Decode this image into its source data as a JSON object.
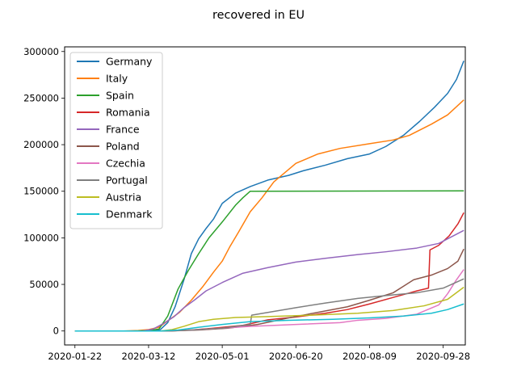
{
  "chart_data": {
    "type": "line",
    "title": "recovered in EU",
    "xlabel": "",
    "ylabel": "",
    "x_type": "date",
    "xlim": [
      "2020-01-15",
      "2020-10-13"
    ],
    "ylim": [
      -15000,
      305000
    ],
    "x_ticks": [
      "2020-01-22",
      "2020-03-12",
      "2020-05-01",
      "2020-06-20",
      "2020-08-09",
      "2020-09-28"
    ],
    "y_ticks": [
      0,
      50000,
      100000,
      150000,
      200000,
      250000,
      300000
    ],
    "y_tick_labels": [
      "0",
      "50000",
      "100000",
      "150000",
      "200000",
      "250000",
      "300000"
    ],
    "grid": false,
    "legend_position": "top-left",
    "series": [
      {
        "name": "Germany",
        "color": "#1f77b4",
        "points": [
          [
            "2020-01-22",
            0
          ],
          [
            "2020-02-28",
            0
          ],
          [
            "2020-03-15",
            300
          ],
          [
            "2020-03-20",
            1500
          ],
          [
            "2020-03-25",
            9000
          ],
          [
            "2020-03-30",
            26000
          ],
          [
            "2020-04-05",
            55000
          ],
          [
            "2020-04-10",
            83000
          ],
          [
            "2020-04-15",
            99000
          ],
          [
            "2020-04-20",
            110000
          ],
          [
            "2020-04-25",
            120000
          ],
          [
            "2020-05-01",
            137000
          ],
          [
            "2020-05-10",
            148000
          ],
          [
            "2020-05-20",
            155000
          ],
          [
            "2020-06-01",
            162000
          ],
          [
            "2020-06-15",
            167000
          ],
          [
            "2020-06-25",
            172000
          ],
          [
            "2020-07-10",
            178000
          ],
          [
            "2020-07-25",
            185000
          ],
          [
            "2020-08-09",
            190000
          ],
          [
            "2020-08-20",
            198000
          ],
          [
            "2020-09-01",
            210000
          ],
          [
            "2020-09-12",
            225000
          ],
          [
            "2020-09-22",
            240000
          ],
          [
            "2020-10-01",
            255000
          ],
          [
            "2020-10-07",
            270000
          ],
          [
            "2020-10-12",
            290000
          ]
        ]
      },
      {
        "name": "Italy",
        "color": "#ff7f0e",
        "points": [
          [
            "2020-01-22",
            0
          ],
          [
            "2020-02-24",
            0
          ],
          [
            "2020-03-05",
            500
          ],
          [
            "2020-03-12",
            1500
          ],
          [
            "2020-03-19",
            4000
          ],
          [
            "2020-03-26",
            12000
          ],
          [
            "2020-04-02",
            20000
          ],
          [
            "2020-04-10",
            33000
          ],
          [
            "2020-04-18",
            48000
          ],
          [
            "2020-04-25",
            63000
          ],
          [
            "2020-05-01",
            75000
          ],
          [
            "2020-05-06",
            90000
          ],
          [
            "2020-05-12",
            106000
          ],
          [
            "2020-05-20",
            128000
          ],
          [
            "2020-05-28",
            143000
          ],
          [
            "2020-06-05",
            160000
          ],
          [
            "2020-06-20",
            180000
          ],
          [
            "2020-07-05",
            190000
          ],
          [
            "2020-07-20",
            196000
          ],
          [
            "2020-08-09",
            201000
          ],
          [
            "2020-08-25",
            205000
          ],
          [
            "2020-09-05",
            210000
          ],
          [
            "2020-09-20",
            222000
          ],
          [
            "2020-10-01",
            232000
          ],
          [
            "2020-10-12",
            248000
          ]
        ]
      },
      {
        "name": "Spain",
        "color": "#2ca02c",
        "points": [
          [
            "2020-01-22",
            0
          ],
          [
            "2020-03-01",
            0
          ],
          [
            "2020-03-12",
            400
          ],
          [
            "2020-03-19",
            2000
          ],
          [
            "2020-03-25",
            16000
          ],
          [
            "2020-04-01",
            45000
          ],
          [
            "2020-04-08",
            65000
          ],
          [
            "2020-04-15",
            83000
          ],
          [
            "2020-04-22",
            100000
          ],
          [
            "2020-05-01",
            117000
          ],
          [
            "2020-05-10",
            135000
          ],
          [
            "2020-05-15",
            143000
          ],
          [
            "2020-05-20",
            150000
          ],
          [
            "2020-10-12",
            150400
          ]
        ]
      },
      {
        "name": "Romania",
        "color": "#d62728",
        "points": [
          [
            "2020-01-22",
            0
          ],
          [
            "2020-03-25",
            0
          ],
          [
            "2020-04-10",
            1000
          ],
          [
            "2020-04-25",
            3000
          ],
          [
            "2020-05-15",
            6000
          ],
          [
            "2020-06-01",
            12000
          ],
          [
            "2020-06-20",
            15000
          ],
          [
            "2020-07-10",
            19000
          ],
          [
            "2020-07-25",
            23000
          ],
          [
            "2020-08-09",
            29000
          ],
          [
            "2020-08-25",
            36000
          ],
          [
            "2020-09-10",
            43000
          ],
          [
            "2020-09-18",
            46000
          ],
          [
            "2020-09-19",
            87000
          ],
          [
            "2020-09-25",
            92000
          ],
          [
            "2020-10-02",
            102000
          ],
          [
            "2020-10-08",
            115000
          ],
          [
            "2020-10-12",
            127000
          ]
        ]
      },
      {
        "name": "France",
        "color": "#9467bd",
        "points": [
          [
            "2020-01-22",
            0
          ],
          [
            "2020-03-08",
            0
          ],
          [
            "2020-03-15",
            2000
          ],
          [
            "2020-03-22",
            8000
          ],
          [
            "2020-03-29",
            15000
          ],
          [
            "2020-04-05",
            25000
          ],
          [
            "2020-04-12",
            33000
          ],
          [
            "2020-04-20",
            43000
          ],
          [
            "2020-05-01",
            52000
          ],
          [
            "2020-05-15",
            62000
          ],
          [
            "2020-06-01",
            68000
          ],
          [
            "2020-06-20",
            74000
          ],
          [
            "2020-07-10",
            78000
          ],
          [
            "2020-08-01",
            82000
          ],
          [
            "2020-08-20",
            85000
          ],
          [
            "2020-09-10",
            89000
          ],
          [
            "2020-09-25",
            94000
          ],
          [
            "2020-10-12",
            108000
          ]
        ]
      },
      {
        "name": "Poland",
        "color": "#8c564b",
        "points": [
          [
            "2020-01-22",
            0
          ],
          [
            "2020-03-25",
            0
          ],
          [
            "2020-04-15",
            1000
          ],
          [
            "2020-05-05",
            3000
          ],
          [
            "2020-05-25",
            7000
          ],
          [
            "2020-06-15",
            14000
          ],
          [
            "2020-07-05",
            20000
          ],
          [
            "2020-07-25",
            26000
          ],
          [
            "2020-08-09",
            33000
          ],
          [
            "2020-08-25",
            41000
          ],
          [
            "2020-09-01",
            48000
          ],
          [
            "2020-09-08",
            55000
          ],
          [
            "2020-09-20",
            60000
          ],
          [
            "2020-10-01",
            67000
          ],
          [
            "2020-10-08",
            75000
          ],
          [
            "2020-10-12",
            88000
          ]
        ]
      },
      {
        "name": "Czechia",
        "color": "#e377c2",
        "points": [
          [
            "2020-01-22",
            0
          ],
          [
            "2020-03-20",
            0
          ],
          [
            "2020-04-10",
            1000
          ],
          [
            "2020-05-01",
            3000
          ],
          [
            "2020-05-20",
            5000
          ],
          [
            "2020-06-20",
            7000
          ],
          [
            "2020-07-20",
            9000
          ],
          [
            "2020-08-01",
            11500
          ],
          [
            "2020-08-20",
            13500
          ],
          [
            "2020-09-10",
            18000
          ],
          [
            "2020-09-25",
            28000
          ],
          [
            "2020-10-01",
            40000
          ],
          [
            "2020-10-07",
            55000
          ],
          [
            "2020-10-12",
            66000
          ]
        ]
      },
      {
        "name": "Portugal",
        "color": "#7f7f7f",
        "points": [
          [
            "2020-01-22",
            0
          ],
          [
            "2020-03-25",
            0
          ],
          [
            "2020-04-10",
            1000
          ],
          [
            "2020-05-01",
            3000
          ],
          [
            "2020-05-20",
            7000
          ],
          [
            "2020-05-21",
            17000
          ],
          [
            "2020-06-05",
            21000
          ],
          [
            "2020-06-20",
            25000
          ],
          [
            "2020-07-10",
            30000
          ],
          [
            "2020-08-01",
            35000
          ],
          [
            "2020-08-20",
            38000
          ],
          [
            "2020-09-10",
            41000
          ],
          [
            "2020-09-28",
            46000
          ],
          [
            "2020-10-12",
            56000
          ]
        ]
      },
      {
        "name": "Austria",
        "color": "#bcbd22",
        "points": [
          [
            "2020-01-22",
            0
          ],
          [
            "2020-03-20",
            0
          ],
          [
            "2020-03-28",
            1500
          ],
          [
            "2020-04-05",
            5000
          ],
          [
            "2020-04-15",
            10000
          ],
          [
            "2020-04-25",
            12500
          ],
          [
            "2020-05-10",
            14500
          ],
          [
            "2020-06-01",
            15500
          ],
          [
            "2020-07-01",
            17000
          ],
          [
            "2020-08-01",
            19000
          ],
          [
            "2020-08-25",
            22000
          ],
          [
            "2020-09-15",
            27000
          ],
          [
            "2020-10-01",
            34000
          ],
          [
            "2020-10-12",
            47000
          ]
        ]
      },
      {
        "name": "Denmark",
        "color": "#17becf",
        "points": [
          [
            "2020-01-22",
            0
          ],
          [
            "2020-03-20",
            0
          ],
          [
            "2020-04-01",
            1000
          ],
          [
            "2020-04-15",
            4000
          ],
          [
            "2020-05-01",
            7000
          ],
          [
            "2020-05-20",
            10000
          ],
          [
            "2020-06-15",
            11500
          ],
          [
            "2020-07-15",
            12500
          ],
          [
            "2020-08-09",
            14000
          ],
          [
            "2020-09-01",
            16000
          ],
          [
            "2020-09-20",
            19000
          ],
          [
            "2020-10-01",
            23000
          ],
          [
            "2020-10-12",
            29000
          ]
        ]
      }
    ]
  }
}
